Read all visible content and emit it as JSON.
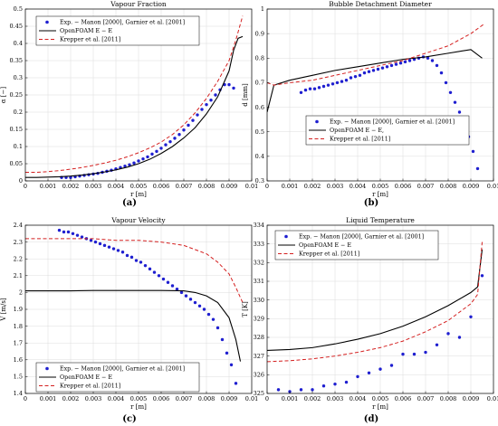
{
  "colors": {
    "exp": "#1f1fd0",
    "openfoam": "#000000",
    "krepper": "#d42020"
  },
  "chart_data": [
    {
      "type": "line",
      "title": "Vapour Fraction",
      "xlabel": "r [m]",
      "ylabel": "α [−]",
      "panel_label": "(a)",
      "xlim": [
        0,
        0.01
      ],
      "ylim": [
        0,
        0.5
      ],
      "xticks": [
        0,
        0.001,
        0.002,
        0.003,
        0.004,
        0.005,
        0.006,
        0.007,
        0.008,
        0.009,
        0.01
      ],
      "xtick_labels": [
        "0",
        "0.001",
        "0.002",
        "0.003",
        "0.004",
        "0.005",
        "0.006",
        "0.007",
        "0.008",
        "0.009",
        "0.01"
      ],
      "yticks": [
        0,
        0.05,
        0.1,
        0.15,
        0.2,
        0.25,
        0.3,
        0.35,
        0.4,
        0.45,
        0.5
      ],
      "ytick_labels": [
        "0",
        "0.05",
        "0.1",
        "0.15",
        "0.2",
        "0.25",
        "0.3",
        "0.35",
        "0.4",
        "0.45",
        "0.5"
      ],
      "legend_position": "top-left",
      "legend_order": [
        "Exp. − Manon [2000], Garnier et al. [2001]",
        "OpenFOAM E − E",
        "Krepper et al. [2011]"
      ],
      "series": [
        {
          "name": "Exp. − Manon [2000], Garnier et al. [2001]",
          "style": "markers",
          "x": [
            0.0016,
            0.0018,
            0.002,
            0.0022,
            0.0024,
            0.0026,
            0.0028,
            0.003,
            0.0032,
            0.0034,
            0.0036,
            0.0038,
            0.004,
            0.0042,
            0.0044,
            0.0046,
            0.0048,
            0.005,
            0.0052,
            0.0054,
            0.0056,
            0.0058,
            0.006,
            0.0062,
            0.0064,
            0.0066,
            0.0068,
            0.007,
            0.0072,
            0.0074,
            0.0076,
            0.0078,
            0.008,
            0.0082,
            0.0084,
            0.0086,
            0.0088,
            0.009,
            0.0092
          ],
          "y": [
            0.01,
            0.01,
            0.01,
            0.012,
            0.014,
            0.016,
            0.018,
            0.02,
            0.022,
            0.025,
            0.028,
            0.031,
            0.035,
            0.039,
            0.043,
            0.047,
            0.052,
            0.058,
            0.064,
            0.07,
            0.078,
            0.086,
            0.095,
            0.105,
            0.114,
            0.124,
            0.135,
            0.148,
            0.162,
            0.176,
            0.192,
            0.208,
            0.222,
            0.235,
            0.25,
            0.265,
            0.28,
            0.28,
            0.27
          ]
        },
        {
          "name": "OpenFOAM E − E",
          "style": "solid",
          "x": [
            0,
            0.0005,
            0.001,
            0.0015,
            0.002,
            0.0025,
            0.003,
            0.0035,
            0.004,
            0.0045,
            0.005,
            0.0055,
            0.006,
            0.0065,
            0.007,
            0.0075,
            0.008,
            0.0085,
            0.009,
            0.0092,
            0.0094,
            0.0096
          ],
          "y": [
            0.01,
            0.01,
            0.011,
            0.012,
            0.014,
            0.017,
            0.021,
            0.026,
            0.032,
            0.04,
            0.05,
            0.063,
            0.08,
            0.1,
            0.125,
            0.155,
            0.195,
            0.245,
            0.32,
            0.38,
            0.415,
            0.42
          ]
        },
        {
          "name": "Krepper et al. [2011]",
          "style": "dashed",
          "x": [
            0,
            0.0005,
            0.001,
            0.0015,
            0.002,
            0.0025,
            0.003,
            0.0035,
            0.004,
            0.0045,
            0.005,
            0.0055,
            0.006,
            0.0065,
            0.007,
            0.0075,
            0.008,
            0.0085,
            0.009,
            0.0093,
            0.0096
          ],
          "y": [
            0.025,
            0.025,
            0.027,
            0.03,
            0.034,
            0.039,
            0.045,
            0.052,
            0.06,
            0.07,
            0.082,
            0.096,
            0.113,
            0.135,
            0.163,
            0.198,
            0.24,
            0.29,
            0.35,
            0.41,
            0.48
          ]
        }
      ]
    },
    {
      "type": "line",
      "title": "Bubble Detachment Diameter",
      "xlabel": "r [m]",
      "ylabel": "d [mm]",
      "panel_label": "(b)",
      "xlim": [
        0,
        0.01
      ],
      "ylim": [
        0.3,
        1
      ],
      "xticks": [
        0,
        0.001,
        0.002,
        0.003,
        0.004,
        0.005,
        0.006,
        0.007,
        0.008,
        0.009,
        0.01
      ],
      "xtick_labels": [
        "0",
        "0.001",
        "0.002",
        "0.003",
        "0.004",
        "0.005",
        "0.006",
        "0.007",
        "0.008",
        "0.009",
        "0.01"
      ],
      "yticks": [
        0.3,
        0.4,
        0.5,
        0.6,
        0.7,
        0.8,
        0.9,
        1
      ],
      "ytick_labels": [
        "0.3",
        "0.4",
        "0.5",
        "0.6",
        "0.7",
        "0.8",
        "0.9",
        "1"
      ],
      "legend_position": "lower-left",
      "legend_order": [
        "Exp. − Manon [2000], Garnier et al. [2001]",
        "OpenFOAM E − E,",
        "Krepper et al. [2011]"
      ],
      "series": [
        {
          "name": "Exp. − Manon [2000], Garnier et al. [2001]",
          "style": "markers",
          "x": [
            0.0015,
            0.0017,
            0.0019,
            0.0021,
            0.0023,
            0.0025,
            0.0027,
            0.0029,
            0.0031,
            0.0033,
            0.0035,
            0.0037,
            0.0039,
            0.0041,
            0.0043,
            0.0045,
            0.0047,
            0.0049,
            0.0051,
            0.0053,
            0.0055,
            0.0057,
            0.0059,
            0.0061,
            0.0063,
            0.0065,
            0.0067,
            0.0069,
            0.0071,
            0.0073,
            0.0075,
            0.0077,
            0.0079,
            0.0081,
            0.0083,
            0.0085,
            0.0087,
            0.0089,
            0.0091,
            0.0093
          ],
          "y": [
            0.66,
            0.67,
            0.675,
            0.675,
            0.68,
            0.685,
            0.69,
            0.695,
            0.7,
            0.705,
            0.71,
            0.72,
            0.725,
            0.73,
            0.74,
            0.745,
            0.75,
            0.755,
            0.76,
            0.765,
            0.77,
            0.775,
            0.78,
            0.785,
            0.79,
            0.795,
            0.8,
            0.805,
            0.8,
            0.79,
            0.77,
            0.74,
            0.7,
            0.66,
            0.62,
            0.58,
            0.53,
            0.48,
            0.42,
            0.35
          ]
        },
        {
          "name": "OpenFOAM E − E,",
          "style": "solid",
          "x": [
            0,
            0.0003,
            0.001,
            0.002,
            0.003,
            0.004,
            0.005,
            0.006,
            0.007,
            0.008,
            0.009,
            0.0095
          ],
          "y": [
            0.58,
            0.69,
            0.71,
            0.73,
            0.75,
            0.765,
            0.78,
            0.795,
            0.805,
            0.82,
            0.835,
            0.8
          ]
        },
        {
          "name": "Krepper et al. [2011]",
          "style": "dashed",
          "x": [
            0,
            0.0003,
            0.001,
            0.002,
            0.003,
            0.004,
            0.005,
            0.006,
            0.007,
            0.008,
            0.009,
            0.0096
          ],
          "y": [
            0.7,
            0.69,
            0.7,
            0.71,
            0.73,
            0.75,
            0.77,
            0.79,
            0.82,
            0.85,
            0.9,
            0.94
          ]
        }
      ]
    },
    {
      "type": "line",
      "title": "Vapour Velocity",
      "xlabel": "r [m]",
      "ylabel": "V [m/s]",
      "panel_label": "(c)",
      "xlim": [
        0,
        0.01
      ],
      "ylim": [
        1.4,
        2.4
      ],
      "xticks": [
        0,
        0.001,
        0.002,
        0.003,
        0.004,
        0.005,
        0.006,
        0.007,
        0.008,
        0.009,
        0.01
      ],
      "xtick_labels": [
        "0",
        "0.001",
        "0.002",
        "0.003",
        "0.004",
        "0.005",
        "0.006",
        "0.007",
        "0.008",
        "0.009",
        "0.01"
      ],
      "yticks": [
        1.4,
        1.5,
        1.6,
        1.7,
        1.8,
        1.9,
        2,
        2.1,
        2.2,
        2.3,
        2.4
      ],
      "ytick_labels": [
        "1.4",
        "1.5",
        "1.6",
        "1.7",
        "1.8",
        "1.9",
        "2",
        "2.1",
        "2.2",
        "2.3",
        "2.4"
      ],
      "legend_position": "lower-left",
      "legend_order": [
        "Exp. − Manon [2000], Garnier et al. [2001]",
        "OpenFOAM E − E",
        "Krepper et al. [2011]"
      ],
      "series": [
        {
          "name": "Exp. − Manon [2000], Garnier et al. [2001]",
          "style": "markers",
          "x": [
            0.0015,
            0.0017,
            0.0019,
            0.0021,
            0.0023,
            0.0025,
            0.0027,
            0.0029,
            0.0031,
            0.0033,
            0.0035,
            0.0037,
            0.0039,
            0.0041,
            0.0043,
            0.0045,
            0.0047,
            0.0049,
            0.0051,
            0.0053,
            0.0055,
            0.0057,
            0.0059,
            0.0061,
            0.0063,
            0.0065,
            0.0067,
            0.0069,
            0.0071,
            0.0073,
            0.0075,
            0.0077,
            0.0079,
            0.0081,
            0.0083,
            0.0085,
            0.0087,
            0.0089,
            0.0091,
            0.0093
          ],
          "y": [
            2.37,
            2.36,
            2.36,
            2.35,
            2.34,
            2.33,
            2.32,
            2.31,
            2.3,
            2.29,
            2.28,
            2.27,
            2.26,
            2.25,
            2.24,
            2.22,
            2.21,
            2.19,
            2.18,
            2.16,
            2.14,
            2.12,
            2.1,
            2.08,
            2.06,
            2.04,
            2.02,
            2.0,
            1.98,
            1.96,
            1.94,
            1.92,
            1.9,
            1.87,
            1.84,
            1.79,
            1.72,
            1.64,
            1.57,
            1.46
          ]
        },
        {
          "name": "OpenFOAM E − E",
          "style": "solid",
          "x": [
            0,
            0.001,
            0.002,
            0.003,
            0.004,
            0.005,
            0.006,
            0.007,
            0.0075,
            0.008,
            0.0085,
            0.009,
            0.0093,
            0.0095
          ],
          "y": [
            2.01,
            2.01,
            2.01,
            2.012,
            2.012,
            2.012,
            2.012,
            2.01,
            2.0,
            1.98,
            1.94,
            1.85,
            1.72,
            1.59
          ]
        },
        {
          "name": "Krepper et al. [2011]",
          "style": "dashed",
          "x": [
            0,
            0.001,
            0.002,
            0.003,
            0.004,
            0.005,
            0.006,
            0.007,
            0.008,
            0.0085,
            0.009,
            0.0093,
            0.0096
          ],
          "y": [
            2.32,
            2.32,
            2.32,
            2.32,
            2.31,
            2.31,
            2.3,
            2.28,
            2.23,
            2.18,
            2.11,
            2.03,
            1.94
          ]
        }
      ]
    },
    {
      "type": "line",
      "title": "Liquid Temperature",
      "xlabel": "r [m]",
      "ylabel": "T [K]",
      "panel_label": "(d)",
      "xlim": [
        0,
        0.01
      ],
      "ylim": [
        325,
        334
      ],
      "xticks": [
        0,
        0.001,
        0.002,
        0.003,
        0.004,
        0.005,
        0.006,
        0.007,
        0.008,
        0.009,
        0.01
      ],
      "xtick_labels": [
        "0",
        "0.001",
        "0.002",
        "0.003",
        "0.004",
        "0.005",
        "0.006",
        "0.007",
        "0.008",
        "0.009",
        "0.01"
      ],
      "yticks": [
        325,
        326,
        327,
        328,
        329,
        330,
        331,
        332,
        333,
        334
      ],
      "ytick_labels": [
        "325",
        "326",
        "327",
        "328",
        "329",
        "330",
        "331",
        "332",
        "333",
        "334"
      ],
      "legend_position": "top-left",
      "legend_order": [
        "Exp. − Manon [2000], Garnier et al. [2001]",
        "OpenFOAM E − E",
        "Krepper et al. [2011]"
      ],
      "series": [
        {
          "name": "Exp. − Manon [2000], Garnier et al. [2001]",
          "style": "markers",
          "x": [
            0.0005,
            0.001,
            0.0015,
            0.002,
            0.0025,
            0.003,
            0.0035,
            0.004,
            0.0045,
            0.005,
            0.0055,
            0.006,
            0.0065,
            0.007,
            0.0075,
            0.008,
            0.0085,
            0.009,
            0.0095
          ],
          "y": [
            325.2,
            325.1,
            325.2,
            325.2,
            325.4,
            325.5,
            325.6,
            325.9,
            326.1,
            326.3,
            326.5,
            327.1,
            327.1,
            327.2,
            327.6,
            328.2,
            328.0,
            329.1,
            331.3
          ]
        },
        {
          "name": "OpenFOAM E − E",
          "style": "solid",
          "x": [
            0,
            0.001,
            0.002,
            0.003,
            0.004,
            0.005,
            0.006,
            0.007,
            0.008,
            0.009,
            0.0093,
            0.0095
          ],
          "y": [
            327.3,
            327.35,
            327.45,
            327.65,
            327.9,
            328.2,
            328.6,
            329.1,
            329.7,
            330.4,
            330.7,
            332.7
          ]
        },
        {
          "name": "Krepper et al. [2011]",
          "style": "dashed",
          "x": [
            0,
            0.001,
            0.002,
            0.003,
            0.004,
            0.005,
            0.006,
            0.007,
            0.008,
            0.009,
            0.0093,
            0.0095
          ],
          "y": [
            326.7,
            326.75,
            326.85,
            327.0,
            327.2,
            327.45,
            327.8,
            328.3,
            328.9,
            329.8,
            330.3,
            333.1
          ]
        }
      ]
    }
  ]
}
